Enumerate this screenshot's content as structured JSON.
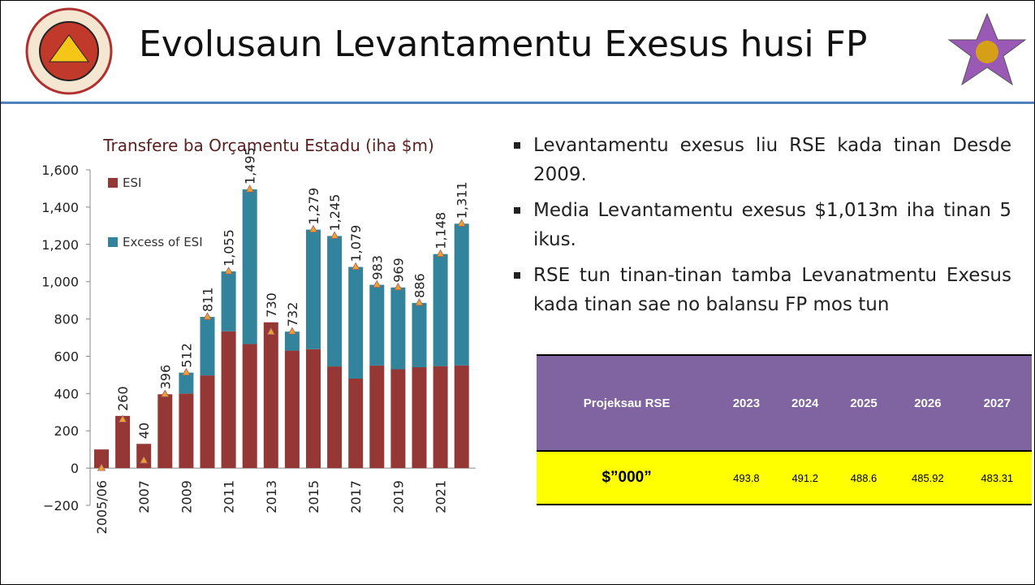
{
  "title": "Evolusaun Levantamentu Exesus husi FP",
  "chart_data": {
    "type": "bar",
    "stacked": true,
    "title": "Transfere ba Orçamentu Estadu (iha $m)",
    "categories": [
      "2005/06",
      null,
      "2007",
      null,
      "2009",
      null,
      "2011",
      null,
      "2013",
      null,
      "2015",
      null,
      "2017",
      null,
      "2019",
      null,
      "2021",
      null
    ],
    "series": [
      {
        "name": "ESI",
        "color": "#953735",
        "values": [
          100,
          280,
          130,
          396,
          400,
          497,
          734,
          665,
          782,
          630,
          638,
          545,
          480,
          550,
          530,
          541,
          547,
          551
        ]
      },
      {
        "name": "Excess of ESI",
        "color": "#31849b",
        "values": [
          0,
          0,
          0,
          0,
          112,
          314,
          321,
          830,
          0,
          102,
          641,
          700,
          599,
          433,
          439,
          345,
          601,
          760
        ]
      }
    ],
    "transfers": {
      "type": "marker",
      "color": "#f0a030",
      "values": [
        0,
        260,
        40,
        396,
        512,
        811,
        1055,
        1495,
        730,
        732,
        1279,
        1245,
        1079,
        983,
        969,
        886,
        1148,
        1311
      ],
      "value_labels": [
        null,
        "260",
        "40",
        "396",
        "512",
        "811",
        "1,055",
        "1,495",
        "730",
        "732",
        "1,279",
        "1,245",
        "1,079",
        "983",
        "969",
        "886",
        "1,148",
        "1,311"
      ]
    },
    "ylim": [
      -200,
      1600
    ],
    "yticks": [
      {
        "value": -200,
        "label": "−200"
      },
      0,
      200,
      400,
      600,
      800,
      {
        "value": 1000,
        "label": "1,000"
      },
      {
        "value": 1200,
        "label": "1,200"
      },
      {
        "value": 1400,
        "label": "1,400"
      },
      {
        "value": 1600,
        "label": "1,600"
      }
    ],
    "grid": false,
    "legend": "upper left"
  },
  "bullets": [
    "Levantamentu exesus liu RSE kada tinan Desde 2009.",
    "Media Levantamentu exesus $1,013m iha tinan 5 ikus.",
    "RSE tun tinan-tinan tamba Levanatmentu Exesus kada tinan sae no balansu FP mos tun"
  ],
  "table": {
    "header": [
      "Projeksau RSE",
      "2023",
      "2024",
      "2025",
      "2026",
      "2027"
    ],
    "rows": [
      [
        "$”000”",
        "493.8",
        "491.2",
        "488.6",
        "485.92",
        "483.31"
      ]
    ]
  }
}
